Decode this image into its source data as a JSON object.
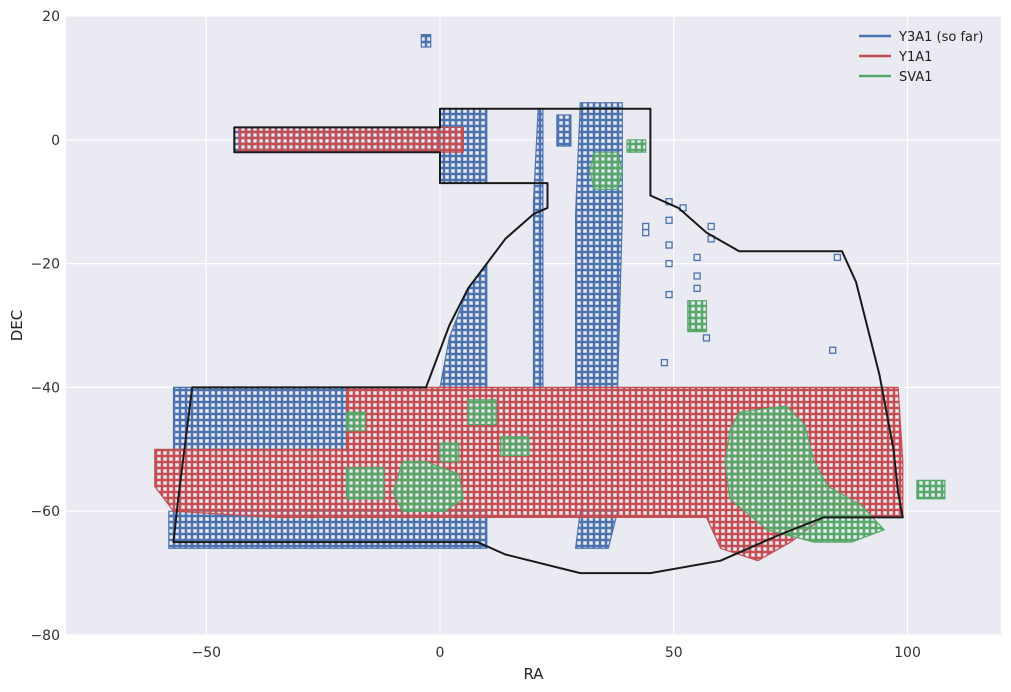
{
  "chart_data": {
    "type": "scatter",
    "xlabel": "RA",
    "ylabel": "DEC",
    "xlim": [
      -80,
      120
    ],
    "ylim": [
      -80,
      20
    ],
    "x_ticks": [
      -50,
      0,
      50,
      100
    ],
    "y_ticks": [
      20,
      0,
      -20,
      -40,
      -60,
      -80
    ],
    "tick_labels": {
      "x": [
        "−50",
        "0",
        "50",
        "100"
      ],
      "y": [
        "20",
        "0",
        "−20",
        "−40",
        "−60",
        "−80"
      ]
    },
    "grid": true,
    "legend_position": "top-right",
    "legend": [
      "Y3A1 (so far)",
      "Y1A1",
      "SVA1"
    ],
    "series": [
      {
        "name": "Y3A1 (so far)",
        "color": "#4c72b0",
        "regions": [
          [
            [
              -44,
              2
            ],
            [
              0,
              2
            ],
            [
              0,
              -2
            ],
            [
              -44,
              -2
            ]
          ],
          [
            [
              0,
              5
            ],
            [
              10,
              5
            ],
            [
              10,
              -7
            ],
            [
              0,
              -7
            ]
          ],
          [
            [
              -57,
              -40
            ],
            [
              -35,
              -40
            ],
            [
              -20,
              -40
            ],
            [
              -20,
              -50
            ],
            [
              -57,
              -50
            ]
          ],
          [
            [
              -58,
              -60
            ],
            [
              10,
              -60
            ],
            [
              10,
              -66
            ],
            [
              -58,
              -66
            ]
          ],
          [
            [
              0,
              -40
            ],
            [
              2,
              -32
            ],
            [
              6,
              -24
            ],
            [
              10,
              -20
            ],
            [
              10,
              -40
            ]
          ],
          [
            [
              30,
              6
            ],
            [
              39,
              6
            ],
            [
              39,
              -12
            ],
            [
              38,
              -40
            ],
            [
              29,
              -40
            ],
            [
              29,
              -12
            ]
          ],
          [
            [
              30,
              -60
            ],
            [
              38,
              -60
            ],
            [
              36,
              -66
            ],
            [
              29,
              -66
            ]
          ],
          [
            [
              -4,
              17
            ],
            [
              -2,
              17
            ],
            [
              -2,
              15
            ],
            [
              -4,
              15
            ]
          ],
          [
            [
              21,
              5
            ],
            [
              22,
              5
            ],
            [
              22,
              -40
            ],
            [
              20,
              -40
            ],
            [
              20,
              -10
            ]
          ],
          [
            [
              25,
              4
            ],
            [
              28,
              4
            ],
            [
              28,
              -1
            ],
            [
              25,
              -1
            ]
          ]
        ],
        "points": [
          [
            49,
            -10
          ],
          [
            49,
            -13
          ],
          [
            49,
            -17
          ],
          [
            49,
            -20
          ],
          [
            44,
            -14
          ],
          [
            44,
            -15
          ],
          [
            49,
            -25
          ],
          [
            48,
            -36
          ],
          [
            55,
            -19
          ],
          [
            55,
            -22
          ],
          [
            55,
            -24
          ],
          [
            52,
            -11
          ],
          [
            58,
            -14
          ],
          [
            58,
            -16
          ],
          [
            57,
            -32
          ],
          [
            85,
            -19
          ],
          [
            84,
            -34
          ]
        ]
      },
      {
        "name": "Y1A1",
        "color": "#c44e52",
        "regions": [
          [
            [
              -43,
              2
            ],
            [
              5,
              2
            ],
            [
              5,
              -2
            ],
            [
              -43,
              -2
            ]
          ],
          [
            [
              -20,
              -40
            ],
            [
              10,
              -40
            ],
            [
              38,
              -40
            ],
            [
              60,
              -40
            ],
            [
              98,
              -40
            ],
            [
              99,
              -52
            ],
            [
              99,
              -61
            ],
            [
              90,
              -61
            ],
            [
              82,
              -61
            ],
            [
              75,
              -65
            ],
            [
              68,
              -68
            ],
            [
              60,
              -66
            ],
            [
              57,
              -61
            ],
            [
              20,
              -61
            ],
            [
              5,
              -61
            ],
            [
              -18,
              -61
            ],
            [
              -35,
              -61
            ],
            [
              -57,
              -60
            ],
            [
              -61,
              -56
            ],
            [
              -61,
              -50
            ],
            [
              -52,
              -50
            ],
            [
              -20,
              -50
            ]
          ]
        ],
        "points": []
      },
      {
        "name": "SVA1",
        "color": "#55a868",
        "regions": [
          [
            [
              33,
              -2
            ],
            [
              38,
              -2
            ],
            [
              39,
              -5
            ],
            [
              38,
              -8
            ],
            [
              33,
              -8
            ],
            [
              32,
              -5
            ]
          ],
          [
            [
              40,
              0
            ],
            [
              44,
              0
            ],
            [
              44,
              -2
            ],
            [
              40,
              -2
            ]
          ],
          [
            [
              53,
              -26
            ],
            [
              57,
              -26
            ],
            [
              57,
              -31
            ],
            [
              53,
              -31
            ]
          ],
          [
            [
              -8,
              -52
            ],
            [
              -3,
              -52
            ],
            [
              4,
              -54
            ],
            [
              5,
              -58
            ],
            [
              1,
              -60
            ],
            [
              -8,
              -60
            ],
            [
              -10,
              -57
            ]
          ],
          [
            [
              -20,
              -53
            ],
            [
              -12,
              -53
            ],
            [
              -12,
              -58
            ],
            [
              -20,
              -58
            ]
          ],
          [
            [
              -20,
              -44
            ],
            [
              -16,
              -44
            ],
            [
              -16,
              -47
            ],
            [
              -20,
              -47
            ]
          ],
          [
            [
              6,
              -42
            ],
            [
              12,
              -42
            ],
            [
              12,
              -46
            ],
            [
              6,
              -46
            ]
          ],
          [
            [
              13,
              -48
            ],
            [
              19,
              -48
            ],
            [
              19,
              -51
            ],
            [
              13,
              -51
            ]
          ],
          [
            [
              0,
              -49
            ],
            [
              4,
              -49
            ],
            [
              4,
              -52
            ],
            [
              0,
              -52
            ]
          ],
          [
            [
              64,
              -44
            ],
            [
              74,
              -43
            ],
            [
              78,
              -46
            ],
            [
              80,
              -52
            ],
            [
              83,
              -56
            ],
            [
              90,
              -59
            ],
            [
              95,
              -63
            ],
            [
              88,
              -65
            ],
            [
              80,
              -65
            ],
            [
              70,
              -63
            ],
            [
              62,
              -58
            ],
            [
              61,
              -52
            ],
            [
              62,
              -47
            ]
          ],
          [
            [
              102,
              -55
            ],
            [
              108,
              -55
            ],
            [
              108,
              -58
            ],
            [
              102,
              -58
            ]
          ]
        ],
        "points": []
      }
    ],
    "footprint": [
      [
        -44,
        2
      ],
      [
        0,
        2
      ],
      [
        0,
        5
      ],
      [
        45,
        5
      ],
      [
        45,
        -9
      ],
      [
        51,
        -11
      ],
      [
        57,
        -15
      ],
      [
        64,
        -18
      ],
      [
        86,
        -18
      ],
      [
        89,
        -23
      ],
      [
        94,
        -38
      ],
      [
        97,
        -50
      ],
      [
        98,
        -57
      ],
      [
        99,
        -61
      ],
      [
        82,
        -61
      ],
      [
        72,
        -64
      ],
      [
        60,
        -68
      ],
      [
        45,
        -70
      ],
      [
        30,
        -70
      ],
      [
        14,
        -67
      ],
      [
        8,
        -65
      ],
      [
        -57,
        -65
      ],
      [
        -56,
        -58
      ],
      [
        -53,
        -40
      ],
      [
        -3,
        -40
      ],
      [
        -2,
        -38
      ],
      [
        2,
        -30
      ],
      [
        6,
        -24
      ],
      [
        10,
        -20
      ],
      [
        14,
        -16
      ],
      [
        20,
        -12
      ],
      [
        23,
        -11
      ],
      [
        23,
        -7
      ],
      [
        0,
        -7
      ],
      [
        0,
        -2
      ],
      [
        -44,
        -2
      ]
    ]
  }
}
